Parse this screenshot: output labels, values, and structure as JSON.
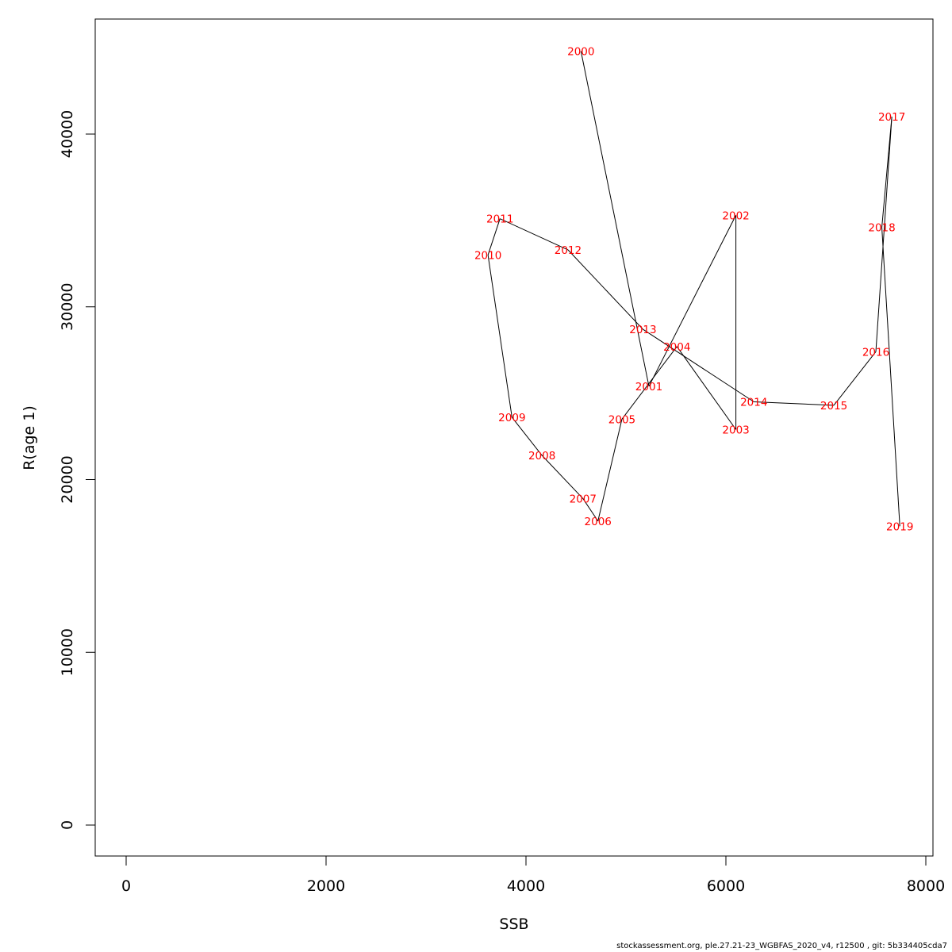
{
  "chart_data": {
    "type": "line",
    "title": "",
    "xlabel": "SSB",
    "ylabel": "R(age 1)",
    "xlim": [
      0,
      8000
    ],
    "ylim": [
      0,
      40000
    ],
    "x_ticks": [
      0,
      2000,
      4000,
      6000,
      8000
    ],
    "y_ticks": [
      0,
      10000,
      20000,
      30000,
      40000
    ],
    "x_tick_labels": [
      "0",
      "2000",
      "4000",
      "6000",
      "8000"
    ],
    "y_tick_labels": [
      "0",
      "10000",
      "20000",
      "30000",
      "40000"
    ],
    "grid": false,
    "line_color": "#000000",
    "label_color": "#ff0000",
    "points": [
      {
        "year": "2000",
        "ssb": 4550,
        "r": 44800
      },
      {
        "year": "2001",
        "ssb": 5230,
        "r": 25400
      },
      {
        "year": "2002",
        "ssb": 6100,
        "r": 35300
      },
      {
        "year": "2003",
        "ssb": 6100,
        "r": 22900
      },
      {
        "year": "2004",
        "ssb": 5510,
        "r": 27700
      },
      {
        "year": "2005",
        "ssb": 4960,
        "r": 23500
      },
      {
        "year": "2006",
        "ssb": 4720,
        "r": 17600
      },
      {
        "year": "2007",
        "ssb": 4570,
        "r": 18900
      },
      {
        "year": "2008",
        "ssb": 4160,
        "r": 21400
      },
      {
        "year": "2009",
        "ssb": 3860,
        "r": 23600
      },
      {
        "year": "2010",
        "ssb": 3620,
        "r": 33000
      },
      {
        "year": "2011",
        "ssb": 3740,
        "r": 35100
      },
      {
        "year": "2012",
        "ssb": 4420,
        "r": 33300
      },
      {
        "year": "2013",
        "ssb": 5170,
        "r": 28700
      },
      {
        "year": "2014",
        "ssb": 6280,
        "r": 24500
      },
      {
        "year": "2015",
        "ssb": 7080,
        "r": 24300
      },
      {
        "year": "2016",
        "ssb": 7500,
        "r": 27400
      },
      {
        "year": "2017",
        "ssb": 7660,
        "r": 41000
      },
      {
        "year": "2018",
        "ssb": 7560,
        "r": 34600
      },
      {
        "year": "2019",
        "ssb": 7740,
        "r": 17300
      }
    ]
  },
  "footer": "stockassessment.org, ple.27.21-23_WGBFAS_2020_v4, r12500 , git: 5b334405cda7"
}
